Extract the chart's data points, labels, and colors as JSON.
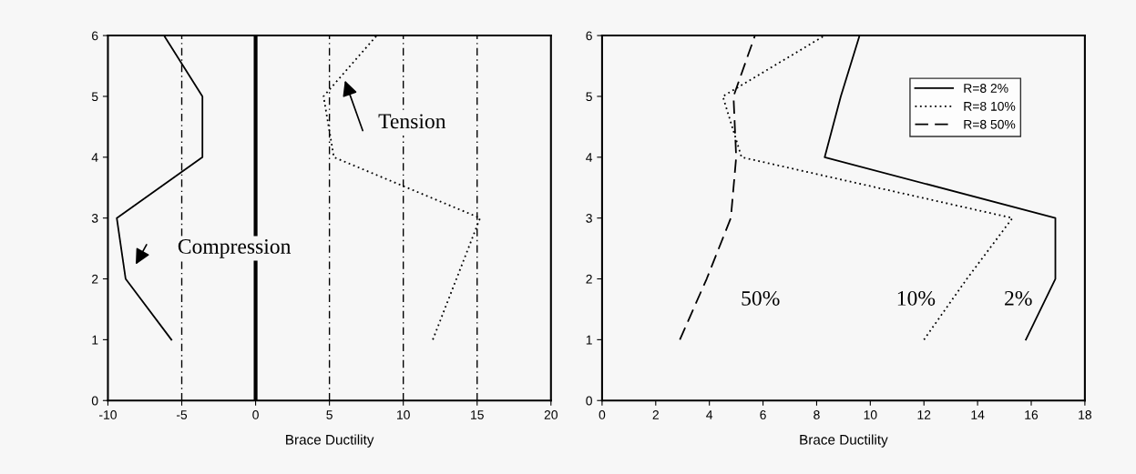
{
  "chart_data": [
    {
      "type": "line",
      "xlabel": "Brace Ductility",
      "xlim": [
        -10,
        20
      ],
      "xticks": [
        -10,
        -5,
        0,
        5,
        10,
        15,
        20
      ],
      "ylim": [
        0,
        6
      ],
      "yticks": [
        0,
        1,
        2,
        3,
        4,
        5,
        6
      ],
      "grid": false,
      "legend": false,
      "marker": "none",
      "series": [
        {
          "color": "#000000",
          "line_style": "solid",
          "x": [
            -5.7,
            -8.8,
            -9.4,
            -3.6,
            -3.6,
            -6.2
          ],
          "values": [
            1,
            2,
            3,
            4,
            5,
            6
          ]
        },
        {
          "color": "#000000",
          "line_style": "dotted",
          "x": [
            12,
            13.6,
            15.2,
            5.3,
            4.6,
            8.2
          ],
          "values": [
            1,
            2,
            3,
            4,
            5,
            6
          ]
        }
      ],
      "ref_lines": [
        {
          "axis": "x",
          "value": 0,
          "color": "#000000",
          "line_style": "solid"
        },
        {
          "axis": "x",
          "value": -5,
          "color": "#000000",
          "line_style": "dashed"
        },
        {
          "axis": "x",
          "value": 5,
          "color": "#000000",
          "line_style": "dashed"
        },
        {
          "axis": "x",
          "value": 10,
          "color": "#000000",
          "line_style": "dashed"
        },
        {
          "axis": "x",
          "value": 15,
          "color": "#000000",
          "line_style": "dashed"
        }
      ],
      "annotations": [
        "Tension",
        "Compression"
      ]
    },
    {
      "type": "line",
      "xlabel": "Brace Ductility",
      "xlim": [
        0,
        18
      ],
      "xticks": [
        0,
        2,
        4,
        6,
        8,
        10,
        12,
        14,
        16,
        18
      ],
      "ylim": [
        0,
        6
      ],
      "yticks": [
        0,
        1,
        2,
        3,
        4,
        5,
        6
      ],
      "grid": false,
      "legend": "top right",
      "marker": "none",
      "series": [
        {
          "name": "R=8 2%",
          "color": "#000000",
          "line_style": "solid",
          "x": [
            15.8,
            16.9,
            16.9,
            8.3,
            8.9,
            9.6
          ],
          "values": [
            1,
            2,
            3,
            4,
            5,
            6
          ]
        },
        {
          "name": "R=8 10%",
          "color": "#000000",
          "line_style": "dotted",
          "x": [
            12,
            13.6,
            15.3,
            5.2,
            4.5,
            8.3
          ],
          "values": [
            1,
            2,
            3,
            4,
            5,
            6
          ]
        },
        {
          "name": "R=8 50%",
          "color": "#000000",
          "line_style": "dashed",
          "x": [
            2.9,
            3.9,
            4.8,
            5.0,
            4.9,
            5.7
          ],
          "values": [
            1,
            2,
            3,
            4,
            5,
            6
          ]
        }
      ],
      "annotations": [
        "50%",
        "10%",
        "2%"
      ]
    }
  ]
}
